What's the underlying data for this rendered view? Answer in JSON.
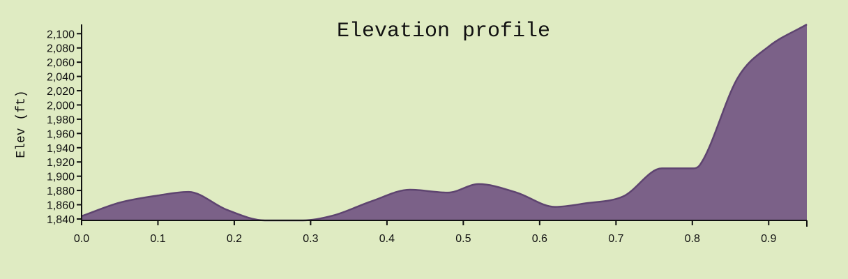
{
  "chart_data": {
    "type": "area",
    "title": "Elevation profile",
    "xlabel": "",
    "ylabel": "Elev (ft)",
    "xlim": [
      0.0,
      0.95
    ],
    "ylim": [
      1838,
      2113
    ],
    "grid": false,
    "fill_color": "#7b6188",
    "line_color": "#5e4470",
    "background_color": "#dfebc2",
    "x_ticks": [
      "0.0",
      "0.1",
      "0.2",
      "0.3",
      "0.4",
      "0.5",
      "0.6",
      "0.7",
      "0.8",
      "0.9"
    ],
    "y_ticks": [
      "1,840",
      "1,860",
      "1,880",
      "1,900",
      "1,920",
      "1,940",
      "1,960",
      "1,980",
      "2,000",
      "2,020",
      "2,040",
      "2,060",
      "2,080",
      "2,100"
    ],
    "series": [
      {
        "x": [
          0.0,
          0.05,
          0.1,
          0.14,
          0.19,
          0.24,
          0.29,
          0.33,
          0.38,
          0.43,
          0.48,
          0.52,
          0.57,
          0.62,
          0.66,
          0.71,
          0.76,
          0.8,
          0.81,
          0.86,
          0.9,
          0.95
        ],
        "y": [
          1844,
          1863,
          1873,
          1878,
          1853,
          1838,
          1838,
          1845,
          1865,
          1881,
          1877,
          1889,
          1877,
          1857,
          1862,
          1872,
          1911,
          1911,
          1916,
          2039,
          2082,
          2113
        ]
      }
    ]
  }
}
